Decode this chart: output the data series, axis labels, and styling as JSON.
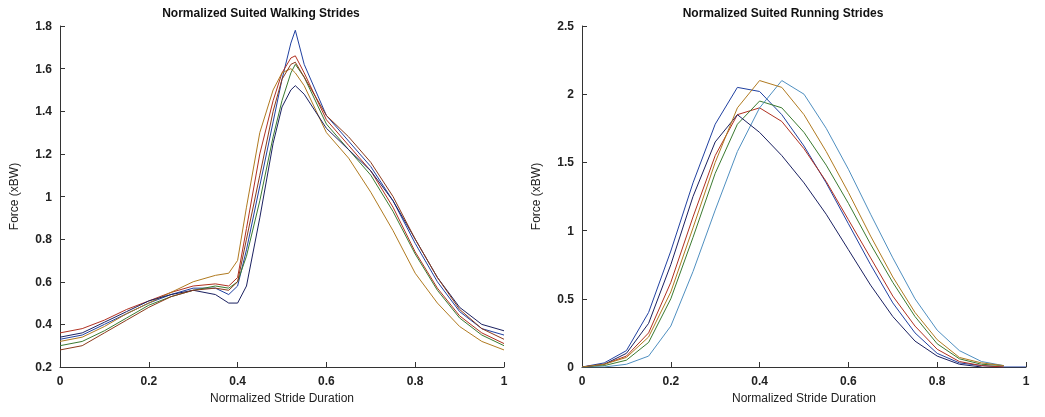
{
  "chart_data": [
    {
      "type": "line",
      "title": "Normalized Suited Walking Strides",
      "xlabel": "Normalized Stride Duration",
      "ylabel": "Force (xBW)",
      "x": [
        0,
        0.05,
        0.1,
        0.15,
        0.2,
        0.25,
        0.3,
        0.35,
        0.38,
        0.4,
        0.42,
        0.45,
        0.48,
        0.5,
        0.52,
        0.53,
        0.55,
        0.6,
        0.65,
        0.7,
        0.75,
        0.8,
        0.85,
        0.9,
        0.95,
        1
      ],
      "series": [
        {
          "color": "#2040a0",
          "values": [
            0.33,
            0.35,
            0.4,
            0.45,
            0.5,
            0.54,
            0.57,
            0.57,
            0.54,
            0.58,
            0.75,
            1.05,
            1.35,
            1.55,
            1.72,
            1.78,
            1.62,
            1.38,
            1.26,
            1.14,
            0.98,
            0.78,
            0.6,
            0.46,
            0.38,
            0.35
          ]
        },
        {
          "color": "#b03020",
          "values": [
            0.36,
            0.38,
            0.42,
            0.47,
            0.51,
            0.55,
            0.58,
            0.59,
            0.58,
            0.62,
            0.85,
            1.2,
            1.45,
            1.58,
            1.65,
            1.66,
            1.58,
            1.36,
            1.24,
            1.12,
            0.95,
            0.74,
            0.57,
            0.44,
            0.36,
            0.31
          ]
        },
        {
          "color": "#3a7a30",
          "values": [
            0.3,
            0.32,
            0.37,
            0.43,
            0.49,
            0.53,
            0.56,
            0.58,
            0.57,
            0.6,
            0.72,
            0.98,
            1.28,
            1.45,
            1.58,
            1.62,
            1.56,
            1.34,
            1.22,
            1.1,
            0.93,
            0.73,
            0.56,
            0.43,
            0.35,
            0.3
          ]
        },
        {
          "color": "#b07a20",
          "values": [
            0.32,
            0.34,
            0.39,
            0.45,
            0.5,
            0.55,
            0.6,
            0.63,
            0.64,
            0.7,
            0.95,
            1.3,
            1.5,
            1.58,
            1.6,
            1.58,
            1.52,
            1.3,
            1.18,
            1.02,
            0.84,
            0.64,
            0.5,
            0.39,
            0.32,
            0.28
          ]
        },
        {
          "color": "#1a2060",
          "values": [
            0.34,
            0.36,
            0.41,
            0.46,
            0.51,
            0.54,
            0.56,
            0.54,
            0.5,
            0.5,
            0.58,
            0.9,
            1.25,
            1.42,
            1.5,
            1.52,
            1.48,
            1.32,
            1.22,
            1.12,
            0.98,
            0.8,
            0.62,
            0.48,
            0.4,
            0.37
          ]
        },
        {
          "color": "#8b3a1a",
          "values": [
            0.28,
            0.3,
            0.36,
            0.42,
            0.48,
            0.53,
            0.56,
            0.57,
            0.56,
            0.6,
            0.8,
            1.1,
            1.4,
            1.55,
            1.62,
            1.63,
            1.56,
            1.38,
            1.28,
            1.16,
            1.0,
            0.8,
            0.62,
            0.47,
            0.38,
            0.33
          ]
        }
      ],
      "xlim": [
        0,
        1
      ],
      "xticks": [
        0,
        0.2,
        0.4,
        0.6,
        0.8,
        1
      ],
      "ylim": [
        0.2,
        1.8
      ],
      "yticks": [
        0.2,
        0.4,
        0.6,
        0.8,
        1,
        1.2,
        1.4,
        1.6,
        1.8
      ],
      "grid": false,
      "marker": "none"
    },
    {
      "type": "line",
      "title": "Normalized Suited Running Strides",
      "xlabel": "Normalized Stride Duration",
      "ylabel": "Force (xBW)",
      "x": [
        0,
        0.05,
        0.1,
        0.15,
        0.2,
        0.25,
        0.3,
        0.35,
        0.4,
        0.45,
        0.5,
        0.55,
        0.6,
        0.65,
        0.7,
        0.75,
        0.8,
        0.85,
        0.9,
        0.95,
        1
      ],
      "series": [
        {
          "color": "#2040a0",
          "values": [
            0,
            0.03,
            0.12,
            0.4,
            0.85,
            1.35,
            1.78,
            2.05,
            2.02,
            1.85,
            1.62,
            1.35,
            1.05,
            0.75,
            0.47,
            0.25,
            0.1,
            0.03,
            0.01,
            0,
            0
          ]
        },
        {
          "color": "#b03020",
          "values": [
            0,
            0.02,
            0.08,
            0.25,
            0.62,
            1.1,
            1.55,
            1.85,
            1.9,
            1.8,
            1.6,
            1.36,
            1.08,
            0.8,
            0.52,
            0.3,
            0.13,
            0.04,
            0.01,
            0,
            null
          ]
        },
        {
          "color": "#3a7a30",
          "values": [
            0,
            0.01,
            0.05,
            0.18,
            0.5,
            0.95,
            1.42,
            1.78,
            1.95,
            1.9,
            1.72,
            1.48,
            1.2,
            0.9,
            0.62,
            0.37,
            0.17,
            0.06,
            0.02,
            0.01,
            null
          ]
        },
        {
          "color": "#4f8fc0",
          "values": [
            0,
            0,
            0.02,
            0.08,
            0.3,
            0.7,
            1.15,
            1.58,
            1.9,
            2.1,
            2.0,
            1.75,
            1.45,
            1.12,
            0.8,
            0.5,
            0.27,
            0.12,
            0.04,
            0.01,
            null
          ]
        },
        {
          "color": "#1a2060",
          "values": [
            0,
            0.02,
            0.1,
            0.32,
            0.75,
            1.25,
            1.65,
            1.85,
            1.72,
            1.55,
            1.35,
            1.12,
            0.86,
            0.6,
            0.37,
            0.19,
            0.08,
            0.02,
            0,
            null,
            null
          ]
        },
        {
          "color": "#b07a20",
          "values": [
            0,
            0.02,
            0.07,
            0.22,
            0.55,
            1.02,
            1.5,
            1.9,
            2.1,
            2.05,
            1.85,
            1.58,
            1.28,
            0.96,
            0.66,
            0.4,
            0.2,
            0.07,
            0.03,
            0.01,
            null
          ]
        }
      ],
      "xlim": [
        0,
        1
      ],
      "xticks": [
        0,
        0.2,
        0.4,
        0.6,
        0.8,
        1
      ],
      "ylim": [
        0,
        2.5
      ],
      "yticks": [
        0,
        0.5,
        1,
        1.5,
        2,
        2.5
      ],
      "grid": false,
      "marker": "none"
    }
  ]
}
